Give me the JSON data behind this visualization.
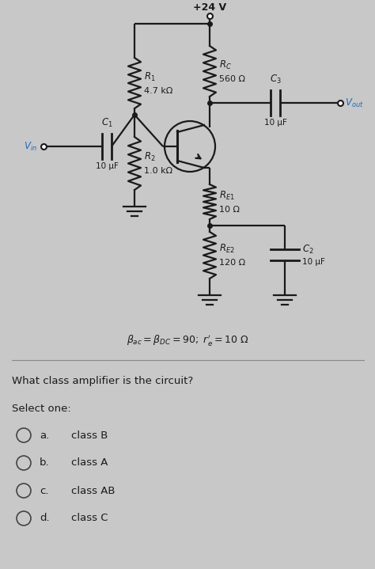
{
  "bg_color": "#c8c8c8",
  "text_color": "#1a1a1a",
  "circuit_color": "#1a1a1a",
  "blue_color": "#1a6bbf",
  "vcc_label": "+24 V",
  "rc_label1": "R_C",
  "rc_label2": "560 Ω",
  "c3_label": "C_3",
  "c3_val": "10 μF",
  "vout_label": "V_{out}",
  "r1_label1": "R_1",
  "r1_label2": "4.7 kΩ",
  "c1_label": "C_1",
  "c1_val": "10 μF",
  "vin_label": "V_{in}",
  "r2_label1": "R_2",
  "r2_label2": "1.0 kΩ",
  "re1_label1": "R_{E1}",
  "re1_label2": "10 Ω",
  "re2_label1": "R_{E2}",
  "re2_label2": "120 Ω",
  "c2_label": "C_2",
  "c2_val": "10 μF",
  "formula": "β_{ac} = β_{DC} = 90; r'_e = 10 Ω",
  "question": "What class amplifier is the circuit?",
  "select_one": "Select one:",
  "choices": [
    {
      "label": "a.",
      "text": "class B"
    },
    {
      "label": "b.",
      "text": "class A"
    },
    {
      "label": "c.",
      "text": "class AB"
    },
    {
      "label": "d.",
      "text": "class C"
    }
  ]
}
